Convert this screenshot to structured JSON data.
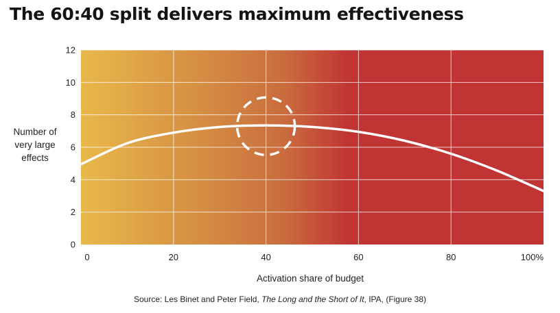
{
  "title": "The 60:40 split delivers maximum effectiveness",
  "source": {
    "prefix": "Source: Les Binet and Peter Field, ",
    "work": "The Long and the Short of It",
    "suffix": ", IPA, (Figure 38)"
  },
  "colors": {
    "gradient_start": "#e8b84a",
    "gradient_mid": "#c96c3e",
    "gradient_end": "#c03434",
    "curve": "#ffffff",
    "grid": "#ffffff"
  },
  "chart_data": {
    "type": "line",
    "title": "The 60:40 split delivers maximum effectiveness",
    "xlabel": "Activation share of budget",
    "ylabel_lines": [
      "Number of",
      "very large",
      "effects"
    ],
    "xlim": [
      0,
      100
    ],
    "ylim": [
      0,
      12
    ],
    "x_ticks": [
      {
        "value": 0,
        "label": "0"
      },
      {
        "value": 20,
        "label": "20"
      },
      {
        "value": 40,
        "label": "40"
      },
      {
        "value": 60,
        "label": "60"
      },
      {
        "value": 80,
        "label": "80"
      },
      {
        "value": 100,
        "label": "100%"
      }
    ],
    "y_ticks": [
      {
        "value": 0,
        "label": "0"
      },
      {
        "value": 2,
        "label": "2"
      },
      {
        "value": 4,
        "label": "4"
      },
      {
        "value": 6,
        "label": "6"
      },
      {
        "value": 8,
        "label": "8"
      },
      {
        "value": 10,
        "label": "10"
      },
      {
        "value": 12,
        "label": "12"
      }
    ],
    "grid": true,
    "series": [
      {
        "x": [
          0,
          10,
          20,
          30,
          40,
          50,
          60,
          70,
          80,
          90,
          100
        ],
        "values": [
          4.95,
          6.25,
          6.9,
          7.25,
          7.35,
          7.25,
          6.95,
          6.4,
          5.6,
          4.55,
          3.3
        ]
      }
    ],
    "annotations": [
      {
        "type": "dashed-circle",
        "x": 40,
        "y": 7.3
      }
    ]
  }
}
